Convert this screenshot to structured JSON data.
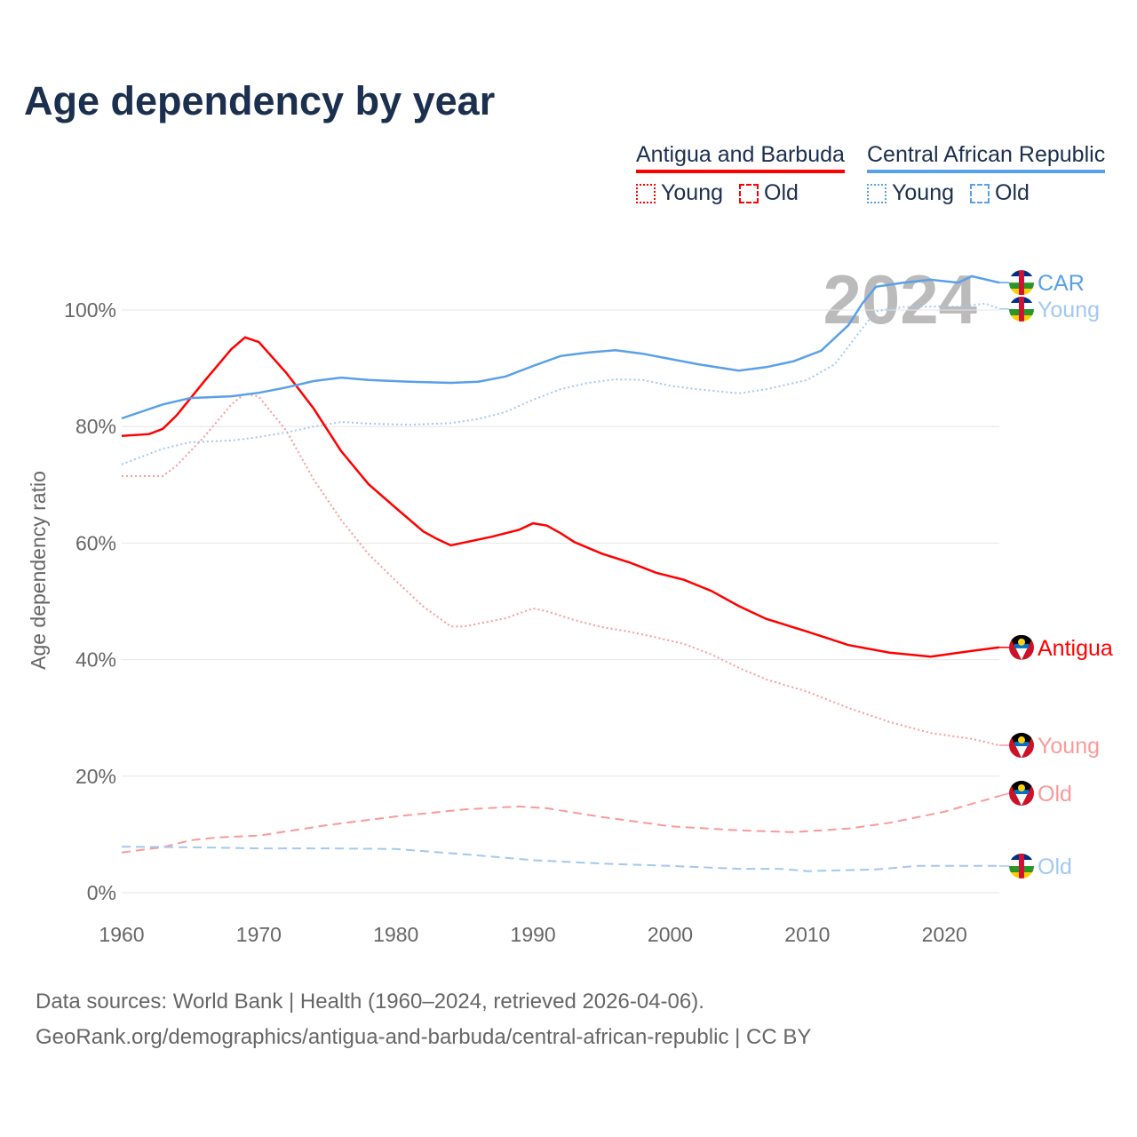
{
  "title": "Age dependency by year",
  "legend": {
    "groups": [
      {
        "name": "Antigua and Barbuda",
        "color": "#ff0000",
        "items": [
          "Young",
          "Old"
        ]
      },
      {
        "name": "Central African Republic",
        "color": "#5aa0e8",
        "items": [
          "Young",
          "Old"
        ]
      }
    ]
  },
  "footer": {
    "line1": "Data sources: World Bank | Health (1960–2024, retrieved 2026-04-06).",
    "line2": "GeoRank.org/demographics/antigua-and-barbuda/central-african-republic | CC BY"
  },
  "chart_data": {
    "type": "line",
    "title": "Age dependency by year",
    "xlabel": "",
    "ylabel": "Age dependency ratio",
    "xlim": [
      1960,
      2024
    ],
    "ylim": [
      0,
      110
    ],
    "xticks": [
      "1960",
      "1970",
      "1980",
      "1990",
      "2000",
      "2010",
      "2020"
    ],
    "yticks": [
      "0%",
      "20%",
      "40%",
      "60%",
      "80%",
      "100%"
    ],
    "year_watermark": "2024",
    "grid": true,
    "legend_position": "top-right",
    "series": [
      {
        "name": "Antigua",
        "country": "ATG",
        "kind": "total",
        "color": "#ff0000",
        "style": "solid",
        "points": [
          [
            1960,
            78.4
          ],
          [
            1962,
            78.7
          ],
          [
            1963,
            79.6
          ],
          [
            1964,
            81.9
          ],
          [
            1966,
            87.7
          ],
          [
            1968,
            93.3
          ],
          [
            1969,
            95.3
          ],
          [
            1970,
            94.5
          ],
          [
            1972,
            89.2
          ],
          [
            1974,
            83.1
          ],
          [
            1976,
            75.8
          ],
          [
            1978,
            70.1
          ],
          [
            1980,
            66.0
          ],
          [
            1982,
            62.0
          ],
          [
            1983,
            60.7
          ],
          [
            1984,
            59.6
          ],
          [
            1985,
            60.1
          ],
          [
            1987,
            61.1
          ],
          [
            1989,
            62.3
          ],
          [
            1990,
            63.4
          ],
          [
            1991,
            63.0
          ],
          [
            1992,
            61.7
          ],
          [
            1993,
            60.2
          ],
          [
            1995,
            58.2
          ],
          [
            1997,
            56.7
          ],
          [
            1999,
            54.9
          ],
          [
            2001,
            53.7
          ],
          [
            2003,
            51.8
          ],
          [
            2005,
            49.2
          ],
          [
            2007,
            47.0
          ],
          [
            2010,
            44.8
          ],
          [
            2013,
            42.5
          ],
          [
            2016,
            41.2
          ],
          [
            2019,
            40.5
          ],
          [
            2022,
            41.5
          ],
          [
            2024,
            42.1
          ]
        ]
      },
      {
        "name": "Young",
        "country": "ATG",
        "kind": "young",
        "color": "#f99a9a",
        "style": "dotted",
        "points": [
          [
            1960,
            71.5
          ],
          [
            1963,
            71.5
          ],
          [
            1964,
            73.3
          ],
          [
            1966,
            78.2
          ],
          [
            1968,
            83.8
          ],
          [
            1969,
            85.7
          ],
          [
            1970,
            85.1
          ],
          [
            1972,
            79.3
          ],
          [
            1974,
            70.9
          ],
          [
            1976,
            64.0
          ],
          [
            1978,
            58.1
          ],
          [
            1980,
            53.5
          ],
          [
            1982,
            49.1
          ],
          [
            1984,
            45.7
          ],
          [
            1985,
            45.7
          ],
          [
            1988,
            47.1
          ],
          [
            1990,
            48.8
          ],
          [
            1991,
            48.3
          ],
          [
            1993,
            46.8
          ],
          [
            1995,
            45.6
          ],
          [
            1997,
            44.8
          ],
          [
            1999,
            43.8
          ],
          [
            2001,
            42.7
          ],
          [
            2003,
            40.9
          ],
          [
            2005,
            38.6
          ],
          [
            2007,
            36.6
          ],
          [
            2010,
            34.5
          ],
          [
            2013,
            31.7
          ],
          [
            2016,
            29.3
          ],
          [
            2019,
            27.4
          ],
          [
            2022,
            26.4
          ],
          [
            2024,
            25.3
          ]
        ]
      },
      {
        "name": "Old",
        "country": "ATG",
        "kind": "old",
        "color": "#f99a9a",
        "style": "dashed",
        "points": [
          [
            1960,
            6.9
          ],
          [
            1963,
            7.8
          ],
          [
            1965,
            9.0
          ],
          [
            1967,
            9.5
          ],
          [
            1970,
            9.8
          ],
          [
            1975,
            11.6
          ],
          [
            1980,
            13.1
          ],
          [
            1985,
            14.3
          ],
          [
            1989,
            14.8
          ],
          [
            1991,
            14.5
          ],
          [
            1995,
            13.0
          ],
          [
            2000,
            11.4
          ],
          [
            2005,
            10.7
          ],
          [
            2009,
            10.4
          ],
          [
            2013,
            11.0
          ],
          [
            2016,
            12.0
          ],
          [
            2020,
            13.9
          ],
          [
            2024,
            16.6
          ]
        ]
      },
      {
        "name": "CAR",
        "country": "CAF",
        "kind": "total",
        "color": "#5aa0e8",
        "style": "solid",
        "points": [
          [
            1960,
            81.4
          ],
          [
            1963,
            83.8
          ],
          [
            1965,
            84.9
          ],
          [
            1968,
            85.2
          ],
          [
            1970,
            85.8
          ],
          [
            1972,
            86.7
          ],
          [
            1974,
            87.8
          ],
          [
            1976,
            88.4
          ],
          [
            1978,
            88.0
          ],
          [
            1981,
            87.7
          ],
          [
            1984,
            87.5
          ],
          [
            1986,
            87.7
          ],
          [
            1988,
            88.6
          ],
          [
            1990,
            90.4
          ],
          [
            1992,
            92.1
          ],
          [
            1994,
            92.7
          ],
          [
            1996,
            93.1
          ],
          [
            1998,
            92.5
          ],
          [
            2000,
            91.6
          ],
          [
            2002,
            90.7
          ],
          [
            2005,
            89.6
          ],
          [
            2007,
            90.2
          ],
          [
            2009,
            91.2
          ],
          [
            2011,
            93.0
          ],
          [
            2013,
            97.4
          ],
          [
            2014,
            101.1
          ],
          [
            2015,
            104.0
          ],
          [
            2017,
            104.7
          ],
          [
            2019,
            105.2
          ],
          [
            2021,
            104.7
          ],
          [
            2022,
            105.8
          ],
          [
            2024,
            104.7
          ]
        ]
      },
      {
        "name": "Young",
        "country": "CAF",
        "kind": "young",
        "color": "#a3c8f0",
        "style": "dotted",
        "points": [
          [
            1960,
            73.5
          ],
          [
            1963,
            76.2
          ],
          [
            1965,
            77.3
          ],
          [
            1968,
            77.6
          ],
          [
            1970,
            78.2
          ],
          [
            1972,
            79.0
          ],
          [
            1974,
            80.0
          ],
          [
            1976,
            80.8
          ],
          [
            1978,
            80.5
          ],
          [
            1981,
            80.3
          ],
          [
            1984,
            80.6
          ],
          [
            1986,
            81.3
          ],
          [
            1988,
            82.5
          ],
          [
            1990,
            84.6
          ],
          [
            1992,
            86.4
          ],
          [
            1994,
            87.5
          ],
          [
            1996,
            88.1
          ],
          [
            1998,
            88.0
          ],
          [
            2000,
            87.0
          ],
          [
            2002,
            86.4
          ],
          [
            2005,
            85.7
          ],
          [
            2007,
            86.4
          ],
          [
            2010,
            88.0
          ],
          [
            2012,
            90.7
          ],
          [
            2014,
            96.8
          ],
          [
            2015,
            99.8
          ],
          [
            2017,
            100.5
          ],
          [
            2019,
            100.6
          ],
          [
            2021,
            100.6
          ],
          [
            2023,
            101.1
          ],
          [
            2024,
            100.2
          ]
        ]
      },
      {
        "name": "Old",
        "country": "CAF",
        "kind": "old",
        "color": "#a3c8f0",
        "style": "dashed",
        "points": [
          [
            1960,
            7.9
          ],
          [
            1965,
            7.8
          ],
          [
            1970,
            7.6
          ],
          [
            1975,
            7.6
          ],
          [
            1980,
            7.5
          ],
          [
            1985,
            6.6
          ],
          [
            1990,
            5.6
          ],
          [
            1995,
            5.0
          ],
          [
            2000,
            4.6
          ],
          [
            2005,
            4.1
          ],
          [
            2008,
            4.1
          ],
          [
            2010,
            3.7
          ],
          [
            2015,
            4.0
          ],
          [
            2018,
            4.6
          ],
          [
            2021,
            4.6
          ],
          [
            2024,
            4.6
          ]
        ]
      }
    ]
  }
}
